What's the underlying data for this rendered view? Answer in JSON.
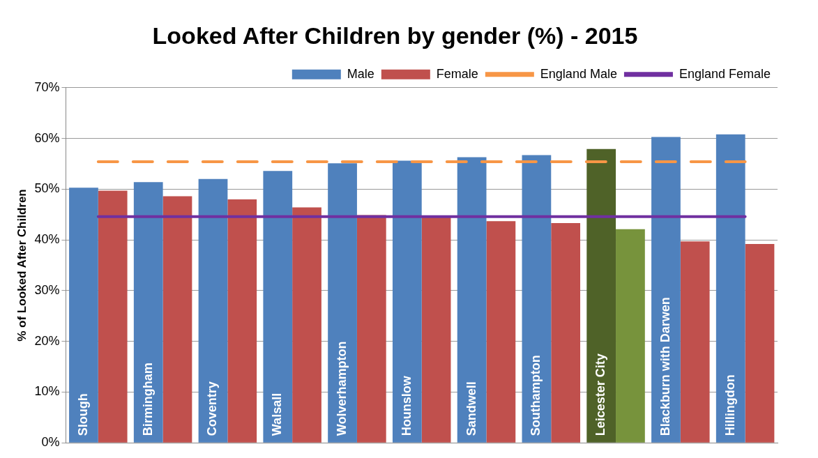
{
  "chart_data": {
    "type": "bar",
    "title": "Looked After Children by gender (%) - 2015",
    "ylabel": "% of Looked After Children",
    "categories": [
      "Slough",
      "Birmingham",
      "Coventry",
      "Walsall",
      "Wolverhampton",
      "Hounslow",
      "Sandwell",
      "Southampton",
      "Leicester City",
      "Blackburn with Darwen",
      "Hillingdon"
    ],
    "series": [
      {
        "name": "Male",
        "color": "#4f81bd",
        "colors": [
          "#4f81bd",
          "#4f81bd",
          "#4f81bd",
          "#4f81bd",
          "#4f81bd",
          "#4f81bd",
          "#4f81bd",
          "#4f81bd",
          "#4f6228",
          "#4f81bd",
          "#4f81bd"
        ],
        "values": [
          50.3,
          51.4,
          52.0,
          53.6,
          55.1,
          55.6,
          56.3,
          56.7,
          57.9,
          60.3,
          60.8
        ]
      },
      {
        "name": "Female",
        "color": "#c0504d",
        "colors": [
          "#c0504d",
          "#c0504d",
          "#c0504d",
          "#c0504d",
          "#c0504d",
          "#c0504d",
          "#c0504d",
          "#c0504d",
          "#77933c",
          "#c0504d",
          "#c0504d"
        ],
        "values": [
          49.7,
          48.6,
          48.0,
          46.4,
          44.9,
          44.4,
          43.7,
          43.3,
          42.1,
          39.7,
          39.2
        ]
      }
    ],
    "ref_lines": [
      {
        "axis": "y",
        "value": 55.4,
        "label": "England Male",
        "color": "#f79646",
        "line_style": "dashed"
      },
      {
        "axis": "y",
        "value": 44.6,
        "label": "England Female",
        "color": "#7030a0",
        "line_style": "solid"
      }
    ],
    "ylim": [
      0,
      70
    ],
    "yticks": [
      {
        "value": 0,
        "label": "0%"
      },
      {
        "value": 10,
        "label": "10%"
      },
      {
        "value": 20,
        "label": "20%"
      },
      {
        "value": 30,
        "label": "30%"
      },
      {
        "value": 40,
        "label": "40%"
      },
      {
        "value": 50,
        "label": "50%"
      },
      {
        "value": 60,
        "label": "60%"
      },
      {
        "value": 70,
        "label": "70%"
      }
    ],
    "grid": "y",
    "legend": "top right"
  }
}
